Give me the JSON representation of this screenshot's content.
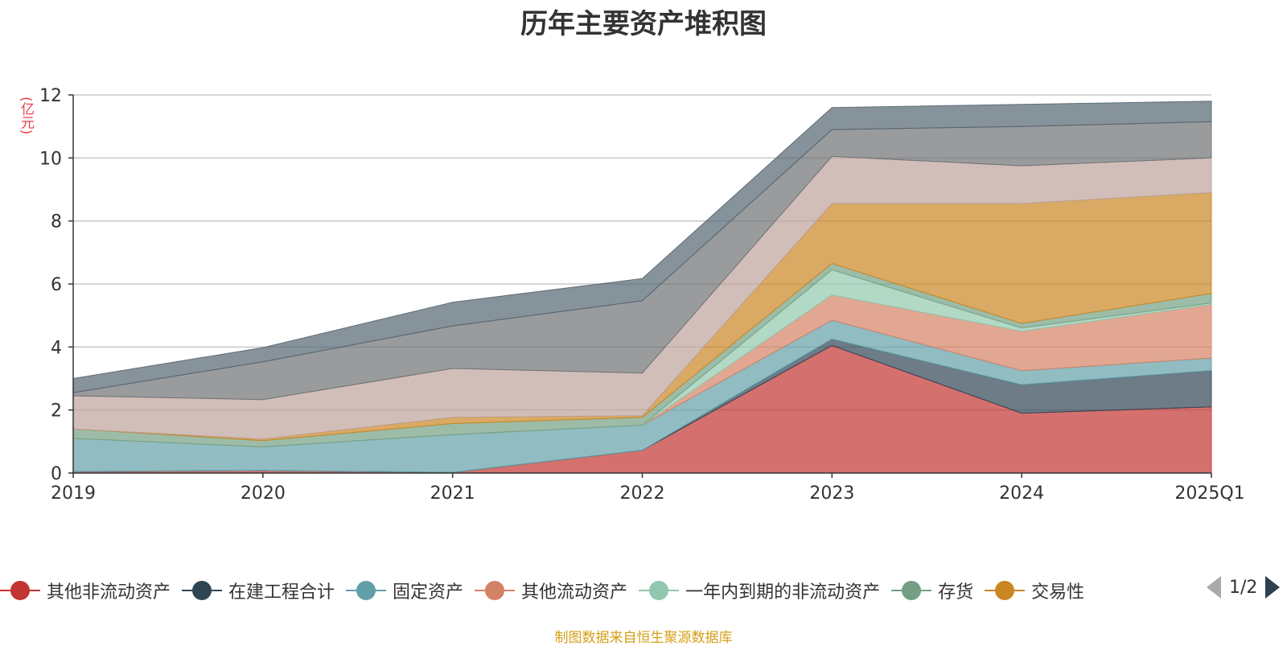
{
  "chart_data": {
    "type": "area",
    "stacked": true,
    "title": "历年主要资产堆积图",
    "unit": "(亿元)",
    "categories": [
      "2019",
      "2020",
      "2021",
      "2022",
      "2023",
      "2024",
      "2025Q1"
    ],
    "ylim": [
      0,
      12
    ],
    "yticks": [
      0,
      2,
      4,
      6,
      8,
      10,
      12
    ],
    "grid": true,
    "legend_position": "bottom",
    "series": [
      {
        "name": "其他非流动资产",
        "color": "#c23531",
        "values": [
          0.05,
          0.08,
          0.02,
          0.72,
          4.05,
          1.9,
          2.1
        ]
      },
      {
        "name": "在建工程合计",
        "color": "#2f4554",
        "values": [
          0.0,
          0.0,
          0.0,
          0.0,
          0.2,
          0.9,
          1.15
        ]
      },
      {
        "name": "固定资产",
        "color": "#61a0a8",
        "values": [
          1.05,
          0.75,
          1.2,
          0.8,
          0.6,
          0.45,
          0.4
        ]
      },
      {
        "name": "其他流动资产",
        "color": "#d48265",
        "values": [
          0.0,
          0.0,
          0.0,
          0.0,
          0.8,
          1.25,
          1.7
        ]
      },
      {
        "name": "一年内到期的非流动资产",
        "color": "#91c7ae",
        "values": [
          0.0,
          0.0,
          0.0,
          0.0,
          0.8,
          0.1,
          0.05
        ]
      },
      {
        "name": "存货",
        "color": "#749f83",
        "values": [
          0.3,
          0.2,
          0.35,
          0.25,
          0.2,
          0.15,
          0.3
        ]
      },
      {
        "name": "交易性",
        "color": "#ca8622",
        "values": [
          0.0,
          0.05,
          0.2,
          0.05,
          1.9,
          3.8,
          3.2
        ]
      },
      {
        "name": "",
        "color": "#bda29a",
        "values": [
          1.05,
          1.25,
          1.55,
          1.35,
          1.5,
          1.2,
          1.1
        ]
      },
      {
        "name": "",
        "color": "#6e7074",
        "values": [
          0.1,
          1.2,
          1.35,
          2.3,
          0.85,
          1.25,
          1.15
        ]
      },
      {
        "name": "",
        "color": "#546570",
        "values": [
          0.45,
          0.45,
          0.75,
          0.7,
          0.7,
          0.7,
          0.65
        ]
      }
    ]
  },
  "legend_pager": {
    "text": "1/2"
  },
  "source_note": "制图数据来自恒生聚源数据库"
}
